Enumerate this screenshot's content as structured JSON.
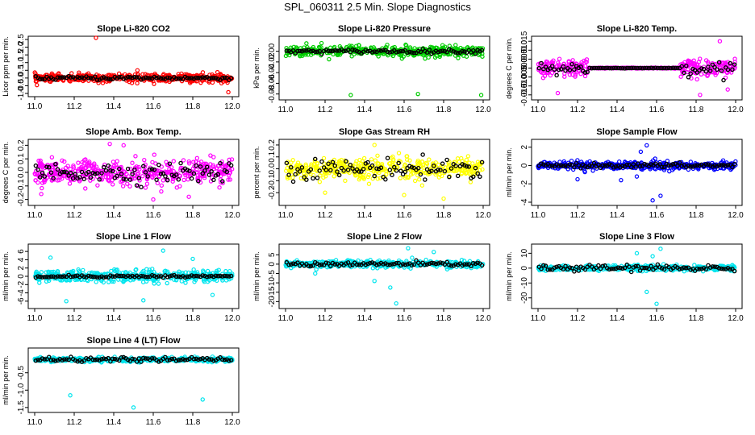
{
  "page_title": "SPL_060311  2.5 Min. Slope Diagnostics",
  "colors": {
    "red": "#ff0000",
    "green": "#00cc00",
    "magenta": "#ff00ff",
    "yellow": "#ffff00",
    "blue": "#0000ff",
    "cyan": "#00e5ee",
    "black": "#000000"
  },
  "chart_data": [
    {
      "type": "scatter",
      "title": "Slope Li-820 CO2",
      "ylabel": "Licor ppm per min.",
      "xlim": [
        11.0,
        12.0
      ],
      "ylim": [
        -1.0,
        2.5
      ],
      "xticks": [
        11.0,
        11.2,
        11.4,
        11.6,
        11.8,
        12.0
      ],
      "yticks": [
        -1.0,
        -0.5,
        0.0,
        0.5,
        1.0,
        1.5,
        2.0,
        2.5
      ],
      "ytick_labels": [
        "-1.0",
        "-0.5",
        "0.0",
        "0.5",
        "1.0",
        "1.5",
        "2.0",
        "2.5"
      ],
      "color": "#ff0000",
      "center": 0.0,
      "spread": 0.22,
      "black_spread": 0.1,
      "outliers": [
        [
          11.31,
          2.75
        ],
        [
          11.52,
          0.5
        ],
        [
          11.98,
          -0.92
        ]
      ]
    },
    {
      "type": "scatter",
      "title": "Slope Li-820 Pressure",
      "ylabel": "kPa per min.",
      "xlim": [
        11.0,
        12.0
      ],
      "ylim": [
        -0.085,
        0.022
      ],
      "xticks": [
        11.0,
        11.2,
        11.4,
        11.6,
        11.8,
        12.0
      ],
      "yticks": [
        0.0,
        -0.02,
        -0.04,
        -0.06,
        -0.08
      ],
      "ytick_labels": [
        "0.00",
        "-0.02",
        "-0.04",
        "-0.06",
        "-0.08"
      ],
      "color": "#00cc00",
      "center": 0.0,
      "spread": 0.008,
      "black_spread": 0.003,
      "outliers": [
        [
          11.33,
          -0.082
        ],
        [
          11.67,
          -0.08
        ],
        [
          11.99,
          -0.082
        ],
        [
          11.22,
          -0.015
        ]
      ]
    },
    {
      "type": "scatter",
      "title": "Slope Li-820 Temp.",
      "ylabel": "degrees C per min.",
      "xlim": [
        11.0,
        12.0
      ],
      "ylim": [
        -0.016,
        0.016
      ],
      "xticks": [
        11.0,
        11.2,
        11.4,
        11.6,
        11.8,
        12.0
      ],
      "yticks": [
        -0.015,
        -0.01,
        -0.005,
        0.0,
        0.005,
        0.01,
        0.015
      ],
      "ytick_labels": [
        "-0.015",
        "-0.010",
        "-0.005",
        "0.000",
        "0.005",
        "0.010",
        "0.015"
      ],
      "color": "#ff00ff",
      "center": 0.0,
      "spread": 0.004,
      "black_spread": 0.003,
      "flat_range": [
        11.25,
        11.72
      ],
      "outliers": [
        [
          11.1,
          -0.014
        ],
        [
          11.82,
          -0.015
        ],
        [
          11.92,
          0.015
        ],
        [
          11.96,
          -0.012
        ]
      ]
    },
    {
      "type": "scatter",
      "title": "Slope Amb. Box Temp.",
      "ylabel": "degrees C per min.",
      "xlim": [
        11.0,
        12.0
      ],
      "ylim": [
        -0.22,
        0.22
      ],
      "xticks": [
        11.0,
        11.2,
        11.4,
        11.6,
        11.8,
        12.0
      ],
      "yticks": [
        -0.2,
        -0.1,
        0.0,
        0.1,
        0.2
      ],
      "ytick_labels": [
        "-0.2",
        "-0.1",
        "0.0",
        "0.1",
        "0.2"
      ],
      "color": "#ff00ff",
      "center": 0.0,
      "spread": 0.08,
      "black_spread": 0.06,
      "outliers": [
        [
          11.38,
          0.21
        ],
        [
          11.6,
          -0.2
        ],
        [
          11.45,
          0.2
        ],
        [
          11.78,
          -0.18
        ]
      ]
    },
    {
      "type": "scatter",
      "title": "Slope Gas Stream RH",
      "ylabel": "percent per min.",
      "xlim": [
        11.0,
        12.0
      ],
      "ylim": [
        -0.28,
        0.22
      ],
      "xticks": [
        11.0,
        11.2,
        11.4,
        11.6,
        11.8,
        12.0
      ],
      "yticks": [
        -0.2,
        -0.1,
        0.0,
        0.1,
        0.2
      ],
      "ytick_labels": [
        "-0.2",
        "-0.1",
        "0.0",
        "0.1",
        "0.2"
      ],
      "color": "#ffff00",
      "center": 0.0,
      "spread": 0.07,
      "black_spread": 0.07,
      "outliers": [
        [
          11.45,
          0.2
        ],
        [
          11.8,
          -0.25
        ],
        [
          11.2,
          -0.2
        ],
        [
          11.6,
          -0.22
        ]
      ]
    },
    {
      "type": "scatter",
      "title": "Slope Sample Flow",
      "ylabel": "ml/min per min.",
      "xlim": [
        11.0,
        12.0
      ],
      "ylim": [
        -4.0,
        2.5
      ],
      "xticks": [
        11.0,
        11.2,
        11.4,
        11.6,
        11.8,
        12.0
      ],
      "yticks": [
        -4,
        -2,
        0,
        2
      ],
      "ytick_labels": [
        "-4",
        "-2",
        "0",
        "2"
      ],
      "color": "#0000ff",
      "center": 0.0,
      "spread": 0.35,
      "black_spread": 0.2,
      "outliers": [
        [
          11.55,
          2.2
        ],
        [
          11.52,
          1.5
        ],
        [
          11.58,
          -3.8
        ],
        [
          11.62,
          -3.3
        ],
        [
          11.42,
          -1.6
        ],
        [
          11.2,
          -1.5
        ],
        [
          11.5,
          -1.2
        ]
      ]
    },
    {
      "type": "scatter",
      "title": "Slope Line 1 Flow",
      "ylabel": "ml/min per min.",
      "xlim": [
        11.0,
        12.0
      ],
      "ylim": [
        -7.0,
        7.0
      ],
      "xticks": [
        11.0,
        11.2,
        11.4,
        11.6,
        11.8,
        12.0
      ],
      "yticks": [
        -6,
        -4,
        -2,
        0,
        2,
        4,
        6
      ],
      "ytick_labels": [
        "-6",
        "-4",
        "-2",
        "0",
        "2",
        "4",
        "6"
      ],
      "color": "#00e5ee",
      "center": 0.0,
      "spread": 1.2,
      "black_spread": 0.25,
      "outliers": [
        [
          11.65,
          6.2
        ],
        [
          11.55,
          -5.8
        ],
        [
          11.16,
          -6.0
        ],
        [
          11.9,
          -4.5
        ],
        [
          11.08,
          4.5
        ],
        [
          11.8,
          4.2
        ]
      ]
    },
    {
      "type": "scatter",
      "title": "Slope Line 2 Flow",
      "ylabel": "ml/min per min.",
      "xlim": [
        11.0,
        12.0
      ],
      "ylim": [
        -22.0,
        9.0
      ],
      "xticks": [
        11.0,
        11.2,
        11.4,
        11.6,
        11.8,
        12.0
      ],
      "yticks": [
        -20,
        -15,
        -10,
        -5,
        0,
        5
      ],
      "ytick_labels": [
        "-20",
        "-15",
        "-10",
        "-5",
        "0",
        "5"
      ],
      "color": "#00e5ee",
      "center": 0.0,
      "spread": 1.5,
      "black_spread": 1.0,
      "outliers": [
        [
          11.56,
          -21.0
        ],
        [
          11.53,
          -12.5
        ],
        [
          11.62,
          8.5
        ],
        [
          11.45,
          -9.0
        ],
        [
          11.75,
          6.5
        ],
        [
          11.15,
          -5.0
        ]
      ]
    },
    {
      "type": "scatter",
      "title": "Slope Line 3 Flow",
      "ylabel": "ml/min per min.",
      "xlim": [
        11.0,
        12.0
      ],
      "ylim": [
        -25.0,
        14.0
      ],
      "xticks": [
        11.0,
        11.2,
        11.4,
        11.6,
        11.8,
        12.0
      ],
      "yticks": [
        -20,
        -10,
        0,
        10
      ],
      "ytick_labels": [
        "-20",
        "-10",
        "0",
        "10"
      ],
      "color": "#00e5ee",
      "center": 0.0,
      "spread": 1.5,
      "black_spread": 1.8,
      "outliers": [
        [
          11.6,
          -24.0
        ],
        [
          11.62,
          13.0
        ],
        [
          11.55,
          -16.0
        ],
        [
          11.5,
          10.0
        ],
        [
          11.58,
          8.0
        ]
      ]
    },
    {
      "type": "scatter",
      "title": "Slope Line 4 (LT) Flow",
      "ylabel": "ml/min per min.",
      "xlim": [
        11.0,
        12.0
      ],
      "ylim": [
        -1.55,
        0.12
      ],
      "xticks": [
        11.0,
        11.2,
        11.4,
        11.6,
        11.8,
        12.0
      ],
      "yticks": [
        -1.5,
        -1.0,
        -0.5
      ],
      "ytick_labels": [
        "-1.5",
        "-1.0",
        "-0.5"
      ],
      "color": "#00e5ee",
      "center": -0.12,
      "spread": 0.05,
      "black_spread": 0.05,
      "outliers": [
        [
          11.18,
          -1.15
        ],
        [
          11.5,
          -1.5
        ],
        [
          11.85,
          -1.27
        ]
      ]
    }
  ]
}
